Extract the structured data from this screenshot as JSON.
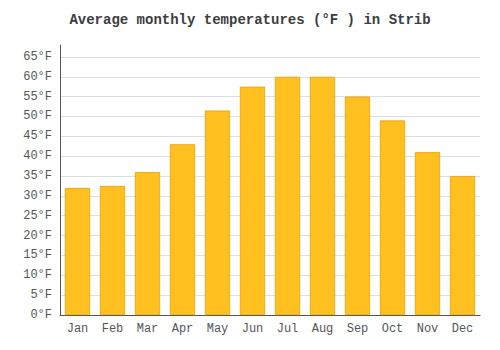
{
  "chart_data": {
    "type": "bar",
    "title": "Average monthly temperatures (°F ) in Strib",
    "categories": [
      "Jan",
      "Feb",
      "Mar",
      "Apr",
      "May",
      "Jun",
      "Jul",
      "Aug",
      "Sep",
      "Oct",
      "Nov",
      "Dec"
    ],
    "values": [
      32,
      32.5,
      36,
      43,
      51.5,
      57.5,
      60,
      60,
      55,
      49,
      41,
      35
    ],
    "color": "#FFC020",
    "ylim": [
      0,
      68
    ],
    "yticks": [
      {
        "value": 0,
        "label": "0°F"
      },
      {
        "value": 5,
        "label": "5°F"
      },
      {
        "value": 10,
        "label": "10°F"
      },
      {
        "value": 15,
        "label": "15°F"
      },
      {
        "value": 20,
        "label": "20°F"
      },
      {
        "value": 25,
        "label": "25°F"
      },
      {
        "value": 30,
        "label": "30°F"
      },
      {
        "value": 35,
        "label": "35°F"
      },
      {
        "value": 40,
        "label": "40°F"
      },
      {
        "value": 45,
        "label": "45°F"
      },
      {
        "value": 50,
        "label": "50°F"
      },
      {
        "value": 55,
        "label": "55°F"
      },
      {
        "value": 60,
        "label": "60°F"
      },
      {
        "value": 65,
        "label": "65°F"
      }
    ],
    "grid": true
  }
}
